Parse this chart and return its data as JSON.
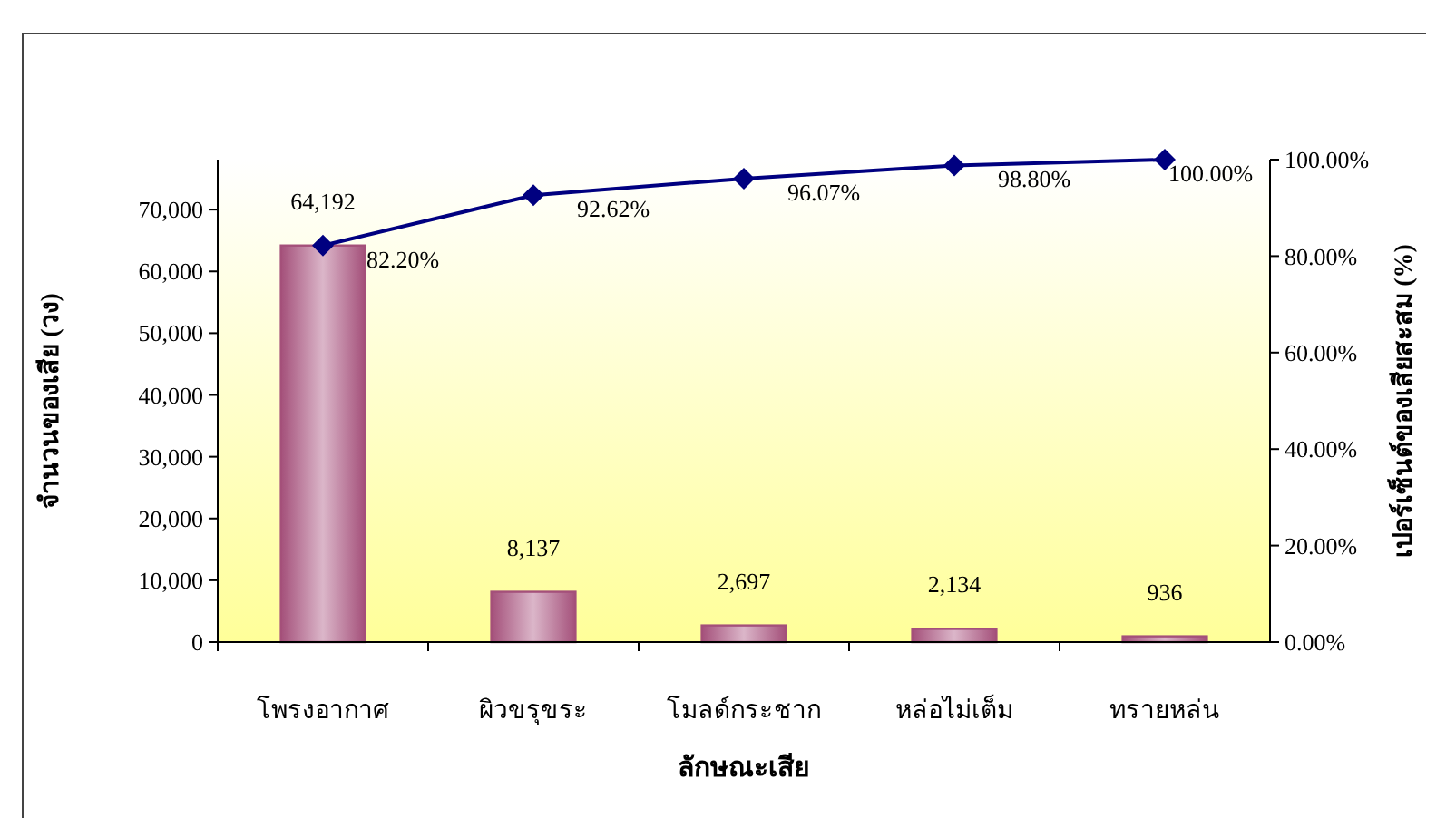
{
  "chart_data": {
    "type": "bar",
    "xlabel": "ลักษณะเสีย",
    "ylabel": "จำนวนของเสีย (วง)",
    "y2label": "เปอร์เซ็นต์ของเสียสะสม (%)",
    "categories": [
      "โพรงอากาศ",
      "ผิวขรุขระ",
      "โมลด์กระชาก",
      "หล่อไม่เต็ม",
      "ทรายหล่น"
    ],
    "series": [
      {
        "color": "#a4507a",
        "values": [
          64192,
          8137,
          2697,
          2134,
          936
        ],
        "value_labels": [
          "64,192",
          "8,137",
          "2,697",
          "2,134",
          "936"
        ]
      },
      {
        "type": "line",
        "axis": "y2",
        "color": "#000080",
        "marker": "diamond",
        "values": [
          82.2,
          92.62,
          96.07,
          98.8,
          100
        ],
        "value_labels": [
          "82.20%",
          "92.62%",
          "96.07%",
          "98.80%",
          "100.00%"
        ]
      }
    ],
    "ylim": [
      0,
      78096
    ],
    "yticks": [
      {
        "value": 0,
        "label": "0"
      },
      {
        "value": 10000,
        "label": "10,000"
      },
      {
        "value": 20000,
        "label": "20,000"
      },
      {
        "value": 30000,
        "label": "30,000"
      },
      {
        "value": 40000,
        "label": "40,000"
      },
      {
        "value": 50000,
        "label": "50,000"
      },
      {
        "value": 60000,
        "label": "60,000"
      },
      {
        "value": 70000,
        "label": "70,000"
      }
    ],
    "y2lim": [
      0,
      100
    ],
    "y2ticks": [
      {
        "value": 0,
        "label": "0.00%"
      },
      {
        "value": 20,
        "label": "20.00%"
      },
      {
        "value": 40,
        "label": "40.00%"
      },
      {
        "value": 60,
        "label": "60.00%"
      },
      {
        "value": 80,
        "label": "80.00%"
      },
      {
        "value": 100,
        "label": "100.00%"
      }
    ]
  }
}
